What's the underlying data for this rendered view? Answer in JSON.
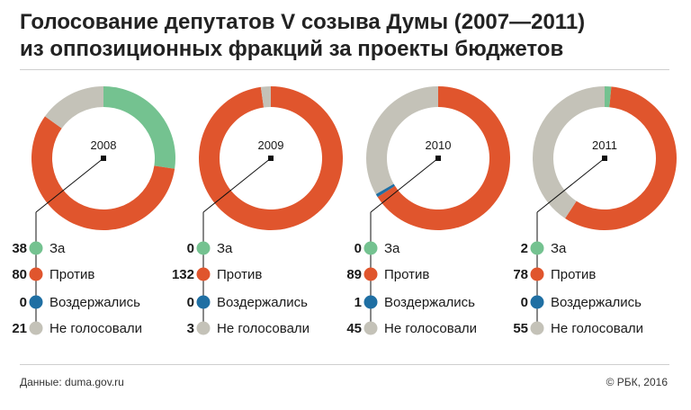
{
  "title_line1": "Голосование депутатов V созыва Думы (2007—2011)",
  "title_line2": "из оппозиционных фракций за проекты бюджетов",
  "source": "Данные: duma.gov.ru",
  "copyright": "© РБК, 2016",
  "colors": {
    "za": "#74c290",
    "protiv": "#e0552d",
    "vozderzhalis": "#1f6fa3",
    "ne_golosovali": "#c4c2b8"
  },
  "chart_data": [
    {
      "type": "donut",
      "title": "2008",
      "categories": [
        "За",
        "Против",
        "Воздержались",
        "Не голосовали"
      ],
      "values": [
        38,
        80,
        0,
        21
      ]
    },
    {
      "type": "donut",
      "title": "2009",
      "categories": [
        "За",
        "Против",
        "Воздержались",
        "Не голосовали"
      ],
      "values": [
        0,
        132,
        0,
        3
      ]
    },
    {
      "type": "donut",
      "title": "2010",
      "categories": [
        "За",
        "Против",
        "Воздержались",
        "Не голосовали"
      ],
      "values": [
        0,
        89,
        1,
        45
      ]
    },
    {
      "type": "donut",
      "title": "2011",
      "categories": [
        "За",
        "Против",
        "Воздержались",
        "Не голосовали"
      ],
      "values": [
        2,
        78,
        0,
        55
      ]
    }
  ]
}
